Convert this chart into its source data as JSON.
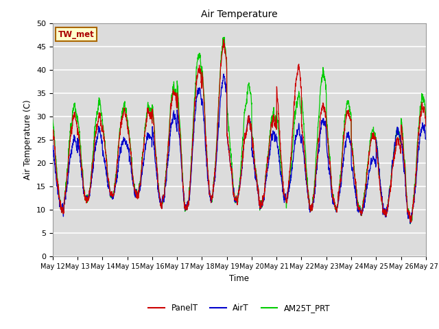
{
  "title": "Air Temperature",
  "ylabel": "Air Temperature (C)",
  "xlabel": "Time",
  "annotation": "TW_met",
  "ylim": [
    0,
    50
  ],
  "plot_bg": "#dcdcdc",
  "fig_bg": "#ffffff",
  "grid_color": "#c8c8c8",
  "colors": {
    "PanelT": "#cc0000",
    "AirT": "#0000cc",
    "AM25T_PRT": "#00cc00"
  },
  "x_tick_labels": [
    "May 12",
    "May 13",
    "May 14",
    "May 15",
    "May 16",
    "May 17",
    "May 18",
    "May 19",
    "May 20",
    "May 21",
    "May 22",
    "May 23",
    "May 24",
    "May 25",
    "May 26",
    "May 27"
  ],
  "yticks": [
    0,
    5,
    10,
    15,
    20,
    25,
    30,
    35,
    40,
    45,
    50
  ],
  "n_days": 15,
  "n_per_day": 144,
  "day_maxes_panel": [
    30,
    30,
    31,
    31,
    35,
    40,
    45,
    29,
    29,
    40,
    32,
    31,
    26,
    25,
    32
  ],
  "day_maxes_air": [
    25,
    27,
    25,
    26,
    30,
    36,
    38,
    29,
    26,
    27,
    29,
    26,
    21,
    27,
    28
  ],
  "day_maxes_green": [
    32,
    33,
    32,
    32,
    36,
    43,
    46,
    36,
    30,
    34,
    39,
    33,
    27,
    27,
    34
  ],
  "day_mins": [
    10,
    12,
    13,
    13,
    11,
    10,
    12,
    12,
    11,
    12,
    10,
    10,
    9,
    9,
    8
  ],
  "noise_scale": 1.2,
  "peak_phase": 0.38
}
